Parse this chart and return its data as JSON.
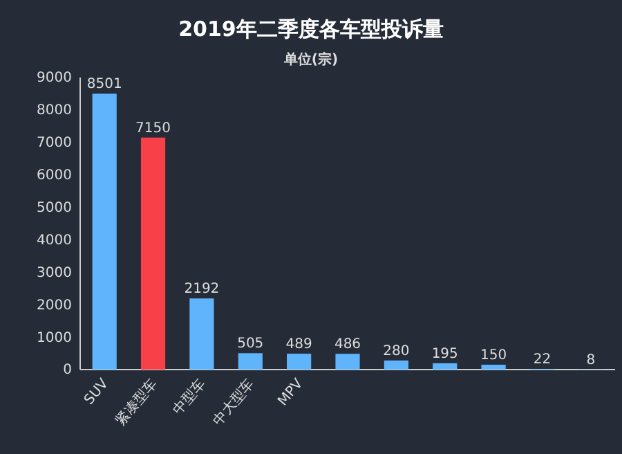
{
  "chart_data": {
    "type": "bar",
    "title": "2019年二季度各车型投诉量",
    "subtitle": "单位(宗)",
    "categories": [
      "SUV",
      "紧凑型车",
      "中型车",
      "中大型车",
      "MPV",
      null,
      null,
      null,
      null,
      null,
      null
    ],
    "values": [
      8501,
      7150,
      2192,
      505,
      489,
      486,
      280,
      195,
      150,
      22,
      8
    ],
    "colors": [
      "#5fb4fb",
      "#f74047",
      "#5fb4fb",
      "#5fb4fb",
      "#5fb4fb",
      "#5fb4fb",
      "#5fb4fb",
      "#5fb4fb",
      "#5fb4fb",
      "#5fb4fb",
      "#5fb4fb"
    ],
    "ylim": [
      0,
      9000
    ],
    "yticks": [
      0,
      1000,
      2000,
      3000,
      4000,
      5000,
      6000,
      7000,
      8000,
      9000
    ],
    "grid": false,
    "data_labels": true
  }
}
